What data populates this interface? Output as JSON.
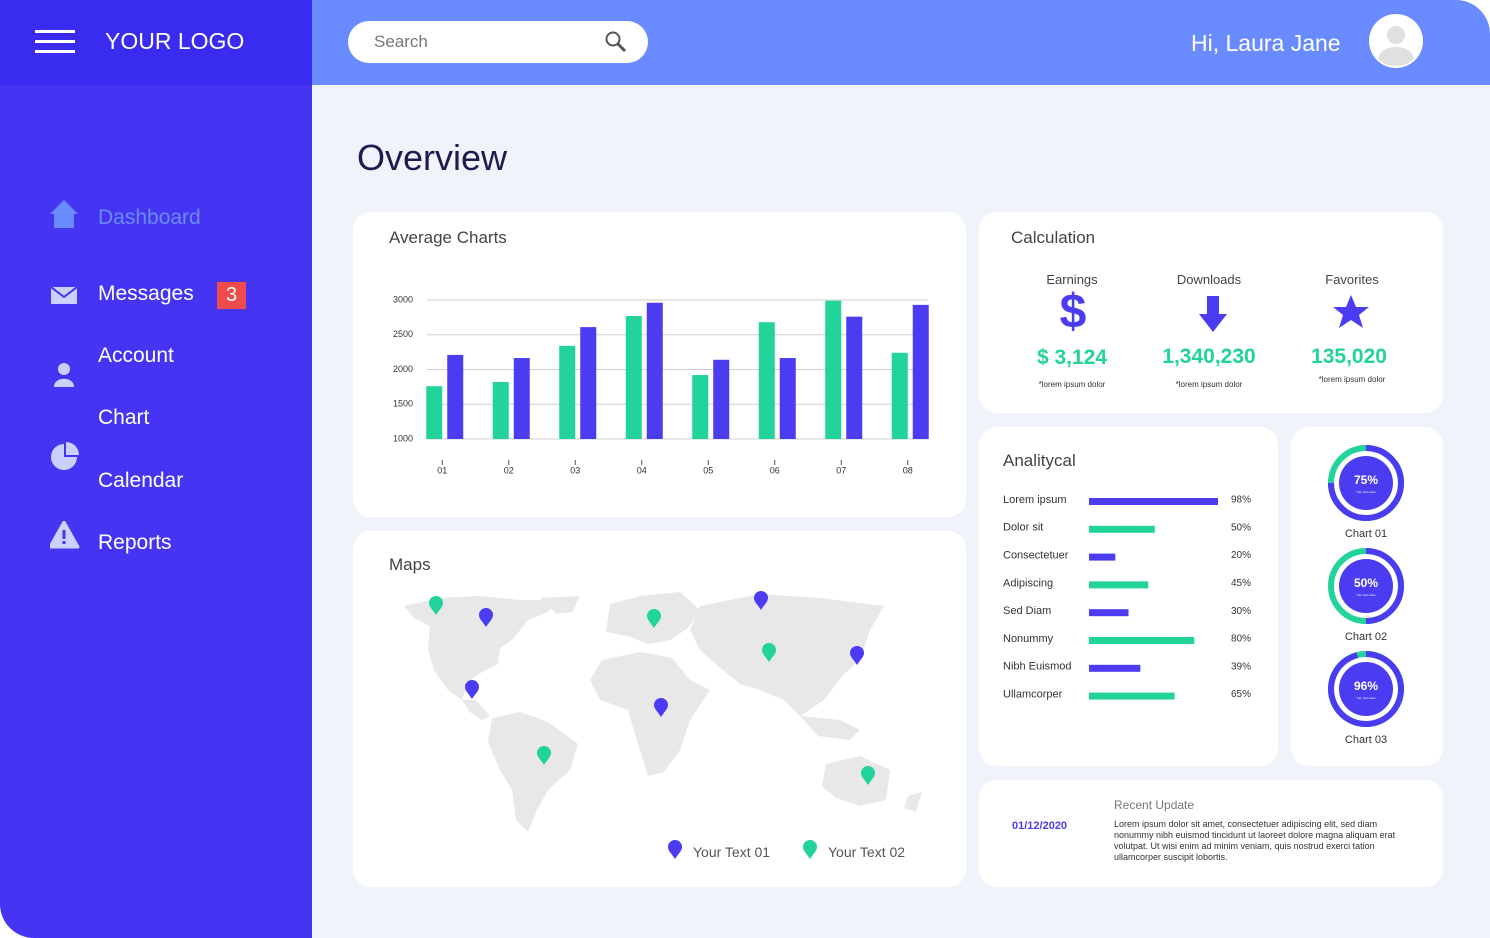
{
  "sidebar": {
    "logo": "YOUR LOGO",
    "menu": [
      {
        "label": "Dashboard"
      },
      {
        "label": "Messages",
        "badge": 3
      },
      {
        "label": "Account"
      },
      {
        "label": "Chart"
      },
      {
        "label": "Calendar"
      },
      {
        "label": "Reports"
      }
    ]
  },
  "header": {
    "search_placeholder": "Search",
    "greeting": "Hi, Laura Jane"
  },
  "page_title": "Overview",
  "calculation": {
    "title": "Calculation",
    "items": [
      {
        "label": "Earnings",
        "value": "$ 3,124",
        "note": "*lorem ipsum dolor"
      },
      {
        "label": "Downloads",
        "value": "1,340,230",
        "note": "*lorem ipsum dolor"
      },
      {
        "label": "Favorites",
        "value": "135,020",
        "note": "*lorem ipsum dolor"
      }
    ]
  },
  "maps": {
    "title": "Maps",
    "legend": [
      "Your Text 01",
      "Your Text 02"
    ]
  },
  "recent_update": {
    "title": "Recent Update",
    "date": "01/12/2020",
    "text": "Lorem ipsum dolor sit amet, consectetuer adipiscing elit, sed diam nonummy nibh euismod tincidunt ut laoreet dolore magna aliquam erat volutpat. Ut wisi enim ad minim veniam, quis nostrud exerci tation ullamcorper suscipit lobortis."
  },
  "chart_data": [
    {
      "type": "bar",
      "title": "Average Charts",
      "categories": [
        "01",
        "02",
        "03",
        "04",
        "05",
        "06",
        "07",
        "08"
      ],
      "series": [
        {
          "color": "#22d39b",
          "values": [
            1760,
            1820,
            2340,
            2770,
            1920,
            2680,
            2990,
            2240
          ]
        },
        {
          "color": "#4b3cf2",
          "values": [
            2210,
            2165,
            2610,
            2960,
            2140,
            2165,
            2760,
            2930
          ]
        }
      ],
      "ylim": [
        1000,
        3000
      ],
      "yticks": [
        1000,
        1500,
        2000,
        2500,
        3000
      ],
      "grid": true
    },
    {
      "type": "hbar",
      "title": "Analitycal",
      "categories": [
        "Lorem ipsum",
        "Dolor sit",
        "Consectetuer",
        "Adipiscing",
        "Sed Diam",
        "Nonummy",
        "Nibh Euismod",
        "Ullamcorper"
      ],
      "values": [
        98,
        50,
        20,
        45,
        30,
        80,
        39,
        65
      ],
      "value_labels": [
        "98%",
        "50%",
        "20%",
        "45%",
        "30%",
        "80%",
        "39%",
        "65%"
      ],
      "colors": [
        "#4b3cf2",
        "#22d39b",
        "#4b3cf2",
        "#22d39b",
        "#4b3cf2",
        "#22d39b",
        "#4b3cf2",
        "#22d39b"
      ]
    },
    {
      "type": "donut",
      "categories": [
        "Chart 01",
        "Chart 02",
        "Chart 03"
      ],
      "values": [
        75,
        50,
        96
      ],
      "value_labels": [
        "75%",
        "50%",
        "96%"
      ],
      "inner_label": "Your Text Here",
      "color": "#4b3cf2",
      "track_color": "#22d39b"
    }
  ]
}
